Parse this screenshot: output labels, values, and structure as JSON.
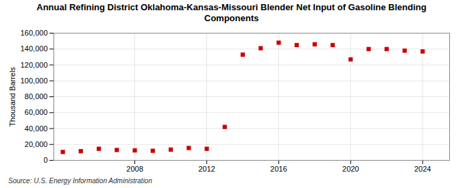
{
  "chart_data": {
    "type": "scatter",
    "title": "Annual Refining District Oklahoma-Kansas-Missouri Blender Net Input of Gasoline Blending\nComponents",
    "ylabel": "Thousand Barrels",
    "source": "Source: U.S. Energy Information Administration",
    "x": [
      2004,
      2005,
      2006,
      2007,
      2008,
      2009,
      2010,
      2011,
      2012,
      2013,
      2014,
      2015,
      2016,
      2017,
      2018,
      2019,
      2020,
      2021,
      2022,
      2023,
      2024
    ],
    "values": [
      10500,
      11500,
      14500,
      13000,
      12500,
      12000,
      13500,
      15500,
      14500,
      42000,
      133000,
      141000,
      148000,
      145000,
      146000,
      145000,
      127000,
      140000,
      140000,
      138000,
      137000
    ],
    "color": "#cc0000",
    "marker": "square",
    "xlim": [
      2003.5,
      2025.5
    ],
    "xticks": [
      2008,
      2012,
      2016,
      2020,
      2024
    ],
    "ylim": [
      0,
      160000
    ],
    "yticks": [
      0,
      {
        "value": 20000,
        "label": "20,000"
      },
      {
        "value": 40000,
        "label": "40,000"
      },
      {
        "value": 60000,
        "label": "60,000"
      },
      {
        "value": 80000,
        "label": "80,000"
      },
      {
        "value": 100000,
        "label": "100,000"
      },
      {
        "value": 120000,
        "label": "120,000"
      },
      {
        "value": 140000,
        "label": "140,000"
      },
      {
        "value": 160000,
        "label": "160,000"
      }
    ],
    "grid": true
  }
}
